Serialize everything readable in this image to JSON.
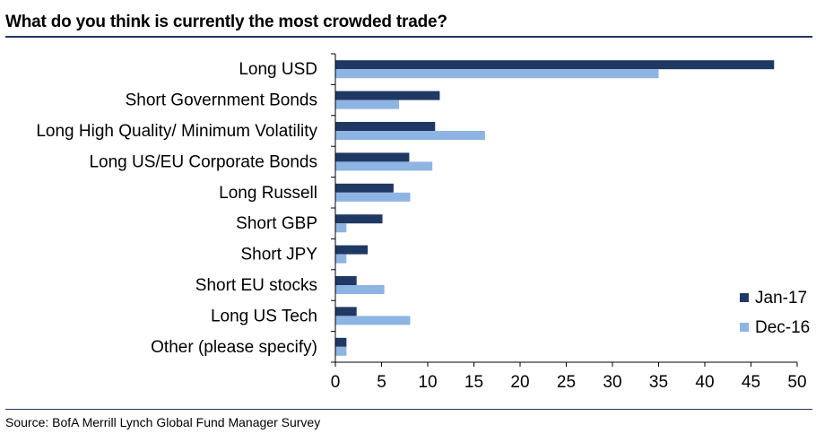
{
  "title": "What do you think is currently the most crowded trade?",
  "source": "Source: BofA Merrill Lynch Global Fund Manager Survey",
  "colors": {
    "jan17": "#1f3864",
    "dec16": "#8eb4e3",
    "rule": "#1f3864"
  },
  "chart_data": {
    "type": "bar",
    "orientation": "horizontal",
    "categories": [
      "Long USD",
      "Short Government Bonds",
      "Long High Quality/ Minimum Volatility",
      "Long US/EU Corporate Bonds",
      "Long Russell",
      "Short GBP",
      "Short JPY",
      "Short EU stocks",
      "Long US Tech",
      "Other (please specify)"
    ],
    "series": [
      {
        "name": "Jan-17",
        "values": [
          47.5,
          11.3,
          10.8,
          8.0,
          6.3,
          5.1,
          3.5,
          2.3,
          2.3,
          1.2
        ]
      },
      {
        "name": "Dec-16",
        "values": [
          35.0,
          6.9,
          16.2,
          10.5,
          8.1,
          1.2,
          1.2,
          5.3,
          8.1,
          1.2
        ]
      }
    ],
    "xlim": [
      0,
      50
    ],
    "xticks": [
      "0",
      "5",
      "10",
      "15",
      "20",
      "25",
      "30",
      "35",
      "40",
      "45",
      "50"
    ],
    "grid": false,
    "legend_position": "bottom-right"
  }
}
